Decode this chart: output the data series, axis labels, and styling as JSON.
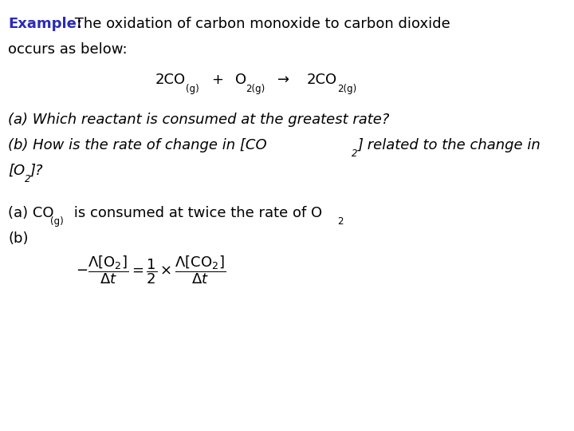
{
  "background_color": "#ffffff",
  "figsize": [
    7.2,
    5.4
  ],
  "dpi": 100,
  "example_bold": "Example:",
  "example_bold_color": "#2B2BB5",
  "example_rest": "  The oxidation of carbon monoxide to carbon dioxide",
  "line2": "occurs as below:",
  "qa": "(a) Which reactant is consumed at the greatest rate?",
  "qb1": "(b) How is the rate of change in [CO",
  "qb1_sub": "2",
  "qb1_end": "] related to the change in",
  "qb2_start": "[O",
  "qb2_sub": "2",
  "qb2_end": "]?",
  "ans_a_prefix": "(a) CO",
  "ans_a_sub": "(g)",
  "ans_a_suffix": " is consumed at twice the rate of O",
  "ans_a_sub2": "2",
  "ans_b": "(b)",
  "fs_main": 13.0,
  "fs_sub": 8.5,
  "fs_eq_main": 13.0,
  "fs_eq_sub": 8.5
}
